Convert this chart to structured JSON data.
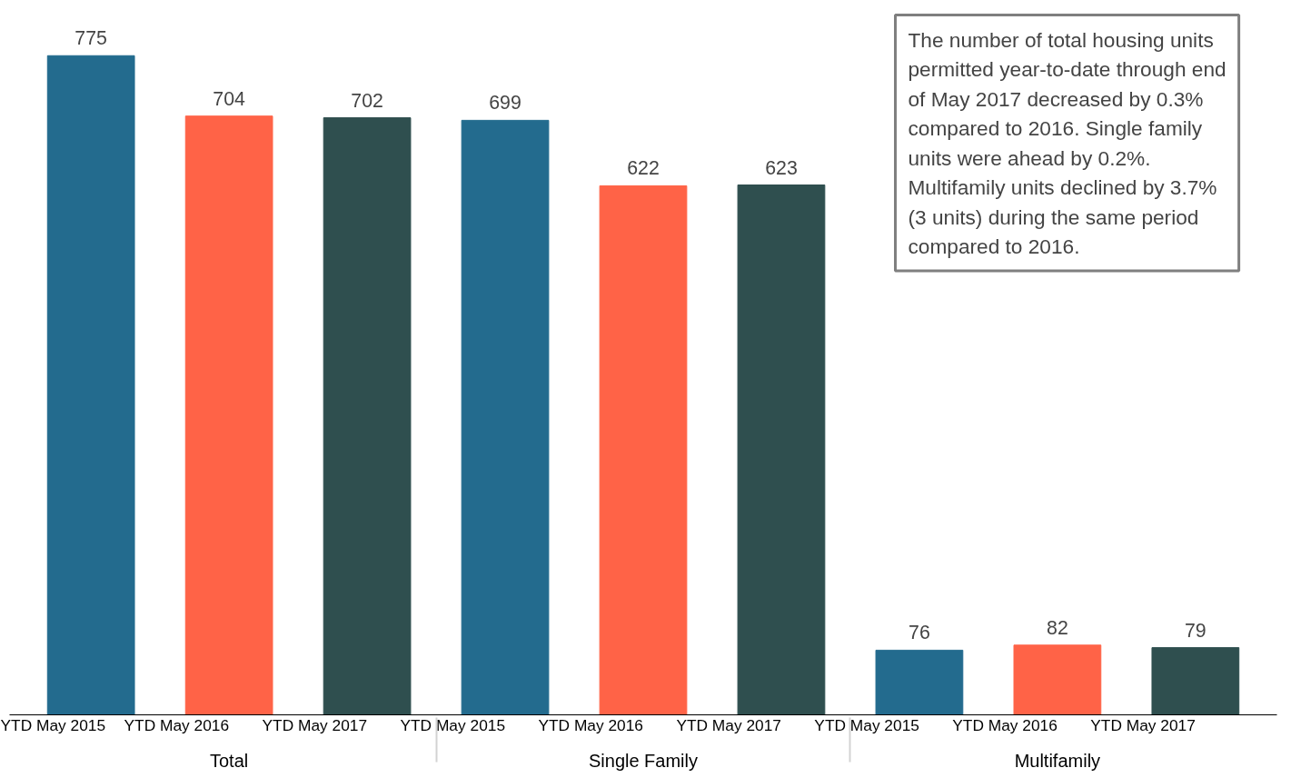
{
  "chart_data": {
    "type": "bar",
    "categories": [
      "Total",
      "Single Family",
      "Multifamily"
    ],
    "series": [
      {
        "name": "YTD May 2015",
        "color": "#236b8e",
        "values": [
          775,
          699,
          76
        ]
      },
      {
        "name": "YTD May 2016",
        "color": "#ff6347",
        "values": [
          704,
          622,
          82
        ]
      },
      {
        "name": "YTD May 2017",
        "color": "#2f4f4f",
        "values": [
          702,
          623,
          79
        ]
      }
    ],
    "data_labels": true,
    "grid": false,
    "annotations": [
      "The number of total housing units permitted year-to-date through end of May 2017 decreased by 0.3% compared to 2016. Single family units were ahead by 0.2%. Multifamily units declined by 3.7% (3 units) during the same period compared to 2016."
    ]
  }
}
